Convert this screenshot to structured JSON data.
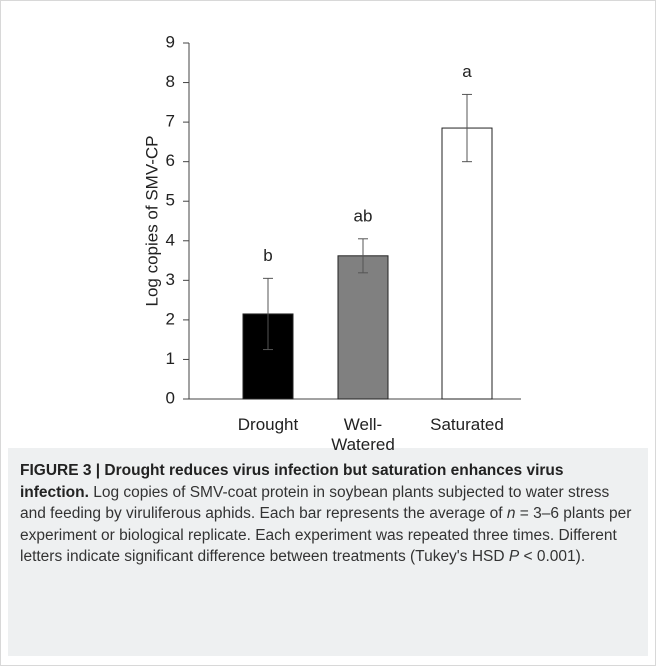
{
  "chart_data": {
    "type": "bar",
    "categories": [
      "Drought",
      "Well-Watered",
      "Saturated"
    ],
    "values": [
      2.15,
      3.62,
      6.85
    ],
    "errors": [
      0.9,
      0.43,
      0.85
    ],
    "annotations": [
      "b",
      "ab",
      "a"
    ],
    "colors": [
      "#000000",
      "#808080",
      "#ffffff"
    ],
    "ylabel": "Log copies of SMV-CP",
    "ylim": [
      0,
      9
    ],
    "yticks": [
      0,
      1,
      2,
      3,
      4,
      5,
      6,
      7,
      8,
      9
    ],
    "grid": false
  },
  "caption": {
    "parts": [
      "FIGURE 3 | Drought reduces virus infection but saturation enhances virus infection.",
      " Log copies of SMV-coat protein in soybean plants subjected to water stress and feeding by viruliferous aphids. Each bar represents the average of ",
      "n",
      " = 3–6 plants per experiment or biological replicate. Each experiment was repeated three times. Different letters indicate significant difference between treatments (Tukey's HSD ",
      "P",
      " < 0.001)."
    ]
  }
}
